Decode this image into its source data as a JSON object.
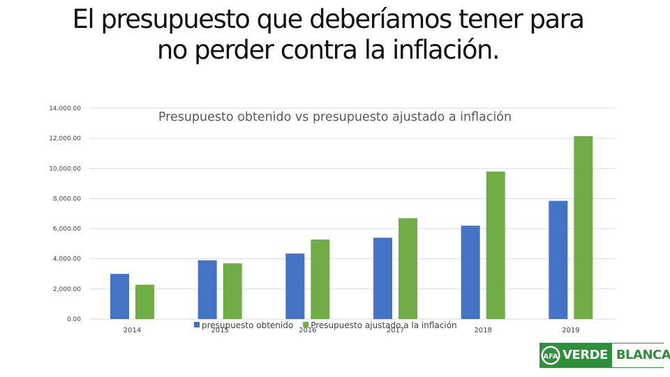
{
  "page": {
    "title_line1": "El presupuesto que deberíamos tener para",
    "title_line2": "no perder contra la inflación."
  },
  "logo": {
    "word1": "VERDE",
    "word2": "BLANCA",
    "monogram": "AFA"
  },
  "colors": {
    "series1": "#4472c4",
    "series2": "#70ad47",
    "grid": "#d9d9d9",
    "text": "#404040",
    "title": "#111111",
    "logo_green": "#2f8f3a"
  },
  "chart_data": {
    "type": "bar",
    "title": "Presupuesto obtenido vs presupuesto ajustado a inflación",
    "categories": [
      "2014",
      "2015",
      "2016",
      "2017",
      "2018",
      "2019"
    ],
    "series": [
      {
        "name": "presupuesto obtenido",
        "color": "#4472c4",
        "values": [
          3000,
          3900,
          4350,
          5400,
          6200,
          7850
        ]
      },
      {
        "name": "Presupuesto ajustado a la inflación",
        "color": "#70ad47",
        "values": [
          2280,
          3700,
          5280,
          6700,
          9800,
          12150
        ]
      }
    ],
    "yticks": [
      "0.00",
      "2,000.00",
      "4,000.00",
      "6,000.00",
      "8,000.00",
      "10,000.00",
      "12,000.00",
      "14,000.00"
    ],
    "ylim": [
      0,
      14000
    ],
    "grid": true,
    "legend_position": "bottom"
  }
}
